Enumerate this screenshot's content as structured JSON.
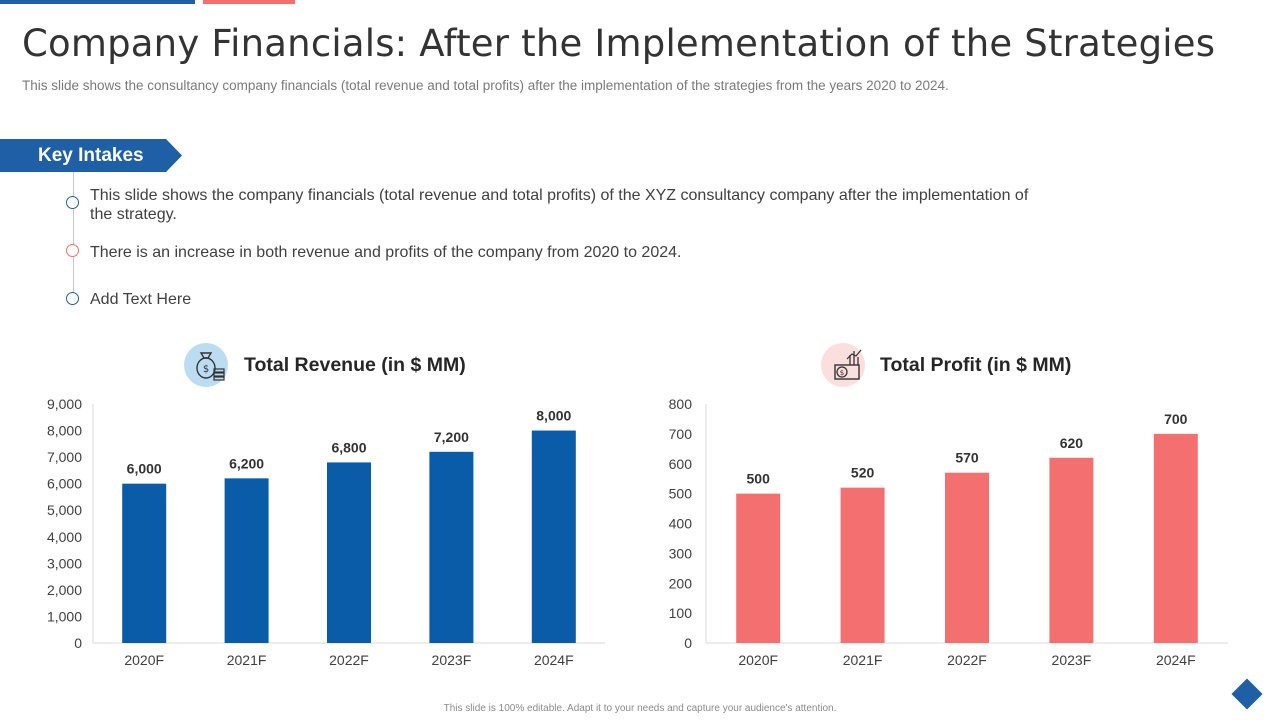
{
  "header": {
    "title": "Company Financials: After the Implementation of the Strategies",
    "subtitle": "This slide shows the consultancy company financials (total revenue and total profits) after the implementation  of the strategies from the years 2020 to 2024."
  },
  "key_intakes": {
    "label": "Key Intakes",
    "items": [
      {
        "text": "This slide shows the company financials (total revenue and total profits) of the XYZ consultancy  company after the implementation of the strategy.",
        "color": "#1f5fa6"
      },
      {
        "text": "There is an increase in both revenue and profits of the company from 2020 to 2024.",
        "color": "#f36f6f"
      },
      {
        "text": "Add Text Here",
        "color": "#1f5fa6"
      }
    ]
  },
  "icons": {
    "revenue": "money-bag-icon",
    "profit": "money-growth-icon"
  },
  "colors": {
    "blue": "#0a5ca8",
    "red": "#f47070",
    "revenue_icon_bg": "#bcdcf2",
    "profit_icon_bg": "#fbdede"
  },
  "chart_data": [
    {
      "type": "bar",
      "title": "Total Revenue (in $ MM)",
      "categories": [
        "2020F",
        "2021F",
        "2022F",
        "2023F",
        "2024F"
      ],
      "values": [
        6000,
        6200,
        6800,
        7200,
        8000
      ],
      "value_labels": [
        "6,000",
        "6,200",
        "6,800",
        "7,200",
        "8,000"
      ],
      "ylim": [
        0,
        9000
      ],
      "yticks": [
        0,
        1000,
        2000,
        3000,
        4000,
        5000,
        6000,
        7000,
        8000,
        9000
      ],
      "ytick_labels": [
        "0",
        "1,000",
        "2,000",
        "3,000",
        "4,000",
        "5,000",
        "6,000",
        "7,000",
        "8,000",
        "9,000"
      ],
      "xlabel": "",
      "ylabel": "",
      "grid": false
    },
    {
      "type": "bar",
      "title": "Total Profit (in $ MM)",
      "categories": [
        "2020F",
        "2021F",
        "2022F",
        "2023F",
        "2024F"
      ],
      "values": [
        500,
        520,
        570,
        620,
        700
      ],
      "value_labels": [
        "500",
        "520",
        "570",
        "620",
        "700"
      ],
      "ylim": [
        0,
        800
      ],
      "yticks": [
        0,
        100,
        200,
        300,
        400,
        500,
        600,
        700,
        800
      ],
      "ytick_labels": [
        "0",
        "100",
        "200",
        "300",
        "400",
        "500",
        "600",
        "700",
        "800"
      ],
      "xlabel": "",
      "ylabel": "",
      "grid": false
    }
  ],
  "footer": {
    "text": "This slide is 100% editable. Adapt it to your needs and capture your audience's attention."
  }
}
